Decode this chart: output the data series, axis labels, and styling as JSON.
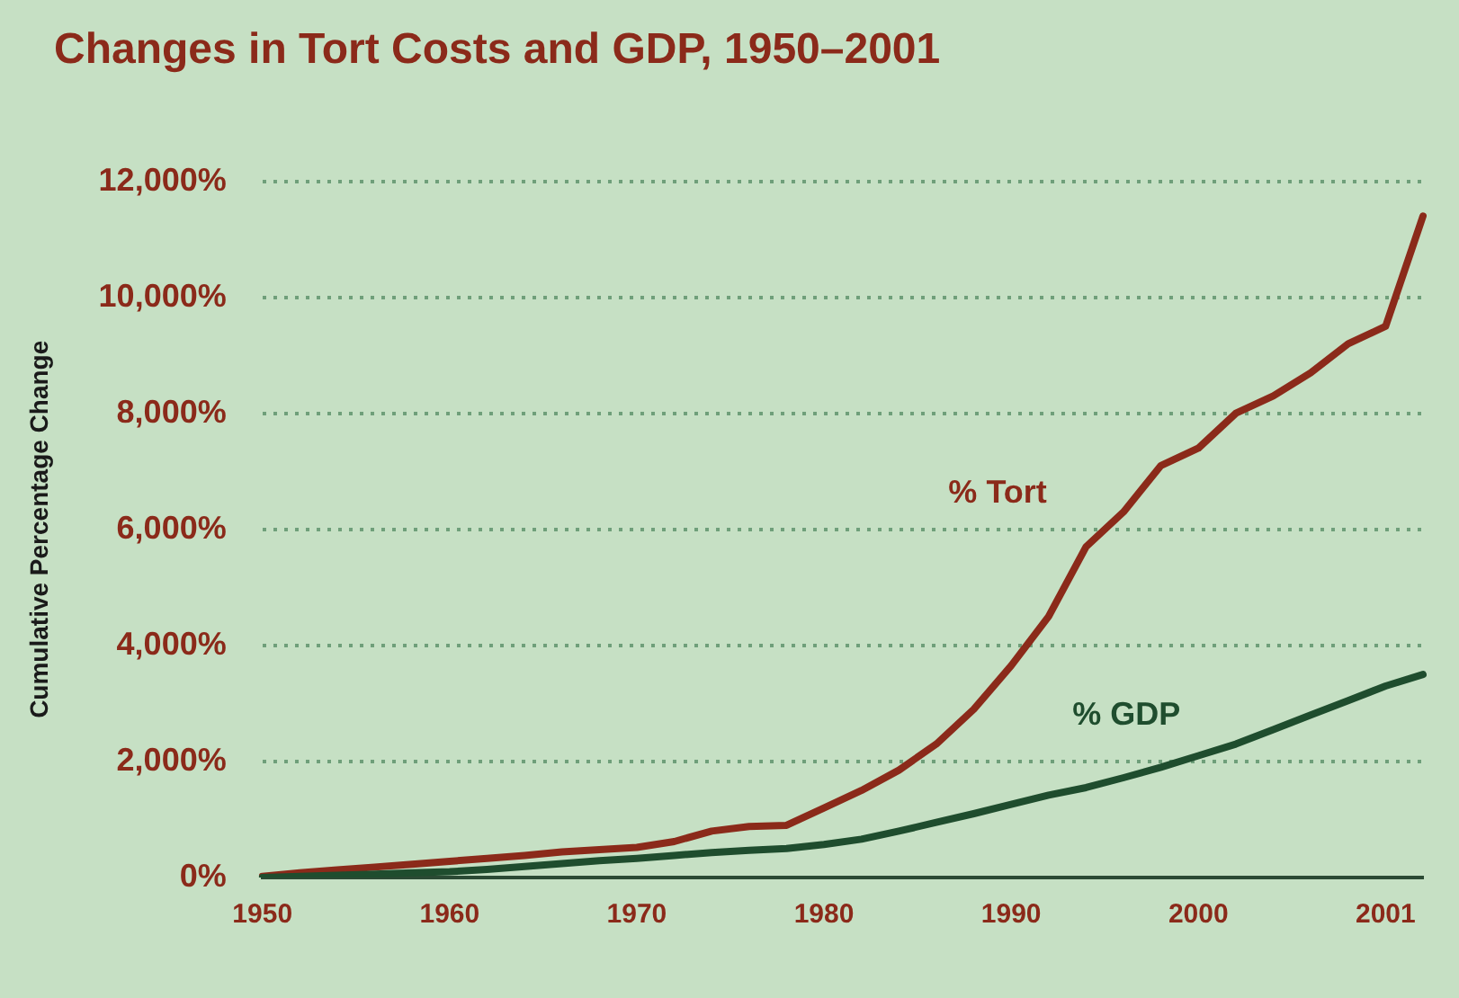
{
  "chart_data": {
    "type": "line",
    "title": "Changes in Tort Costs and GDP, 1950–2001",
    "ylabel": "Cumulative Percentage Change",
    "categories": [
      "1950",
      null,
      null,
      null,
      null,
      "1960",
      null,
      null,
      null,
      null,
      "1970",
      null,
      null,
      null,
      null,
      "1980",
      null,
      null,
      null,
      null,
      "1990",
      null,
      null,
      null,
      null,
      "2000",
      null,
      null,
      null,
      null,
      "2001",
      null
    ],
    "series": [
      {
        "name": "% Tort",
        "color": "#8b2a1a",
        "values": [
          20,
          80,
          130,
          180,
          230,
          280,
          330,
          380,
          440,
          480,
          520,
          620,
          800,
          880,
          900,
          1200,
          1500,
          1850,
          2300,
          2900,
          3650,
          4500,
          5700,
          6300,
          7100,
          7400,
          8000,
          8300,
          8700,
          9200,
          9500,
          11400
        ]
      },
      {
        "name": "% GDP",
        "color": "#1f4d2e",
        "values": [
          0,
          20,
          40,
          60,
          80,
          100,
          140,
          190,
          240,
          290,
          330,
          380,
          430,
          470,
          500,
          570,
          660,
          800,
          950,
          1100,
          1260,
          1420,
          1550,
          1720,
          1900,
          2100,
          2300,
          2550,
          2800,
          3050,
          3300,
          3500
        ]
      }
    ],
    "ylim": [
      0,
      12000
    ],
    "yticks": [
      {
        "value": 0,
        "label": "0%"
      },
      {
        "value": 2000,
        "label": "2,000%"
      },
      {
        "value": 4000,
        "label": "4,000%"
      },
      {
        "value": 6000,
        "label": "6,000%"
      },
      {
        "value": 8000,
        "label": "8,000%"
      },
      {
        "value": 10000,
        "label": "10,000%"
      },
      {
        "value": 12000,
        "label": "12,000%"
      }
    ],
    "grid": "y",
    "legend": false,
    "marker": "none",
    "line_style": "solid"
  }
}
